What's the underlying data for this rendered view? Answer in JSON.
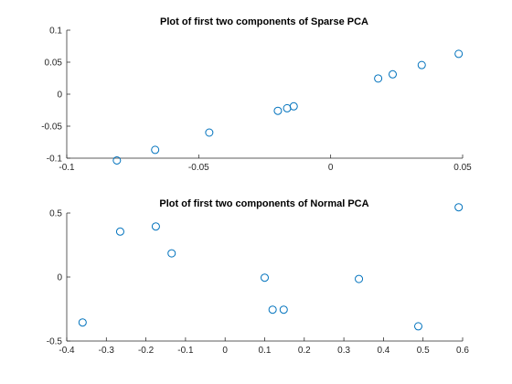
{
  "chart_data": [
    {
      "type": "scatter",
      "title": "Plot of first two components of Sparse PCA",
      "xlabel": "",
      "ylabel": "",
      "xlim": [
        -0.1,
        0.05
      ],
      "ylim": [
        -0.1,
        0.1
      ],
      "xticks": [
        -0.1,
        -0.05,
        0,
        0.05
      ],
      "xtick_labels": [
        "-0.1",
        "-0.05",
        "0",
        "0.05"
      ],
      "yticks": [
        -0.1,
        -0.05,
        0,
        0.05,
        0.1
      ],
      "ytick_labels": [
        "-0.1",
        "-0.05",
        "0",
        "0.05",
        "0.1"
      ],
      "grid": false,
      "marker": "circle",
      "color": "#0072bd",
      "x": [
        -0.081,
        -0.0665,
        -0.046,
        -0.02,
        -0.0165,
        -0.014,
        0.018,
        0.0235,
        0.0345,
        0.0485
      ],
      "y": [
        -0.1035,
        -0.087,
        -0.06,
        -0.026,
        -0.022,
        -0.019,
        0.0245,
        0.031,
        0.0455,
        0.063
      ]
    },
    {
      "type": "scatter",
      "title": "Plot of first two components of Normal PCA",
      "xlabel": "",
      "ylabel": "",
      "xlim": [
        -0.4,
        0.6
      ],
      "ylim": [
        -0.5,
        0.5
      ],
      "xticks": [
        -0.4,
        -0.3,
        -0.2,
        -0.1,
        0,
        0.1,
        0.2,
        0.3,
        0.4,
        0.5,
        0.6
      ],
      "xtick_labels": [
        "-0.4",
        "-0.3",
        "-0.2",
        "-0.1",
        "0",
        "0.1",
        "0.2",
        "0.3",
        "0.4",
        "0.5",
        "0.6"
      ],
      "yticks": [
        -0.5,
        0,
        0.5
      ],
      "ytick_labels": [
        "-0.5",
        "0",
        "0.5"
      ],
      "grid": false,
      "marker": "circle",
      "color": "#0072bd",
      "x": [
        -0.36,
        -0.265,
        -0.175,
        -0.135,
        0.1,
        0.12,
        0.148,
        0.338,
        0.488,
        0.59
      ],
      "y": [
        -0.355,
        0.355,
        0.395,
        0.185,
        -0.005,
        -0.255,
        -0.255,
        -0.015,
        -0.385,
        0.545
      ]
    }
  ]
}
